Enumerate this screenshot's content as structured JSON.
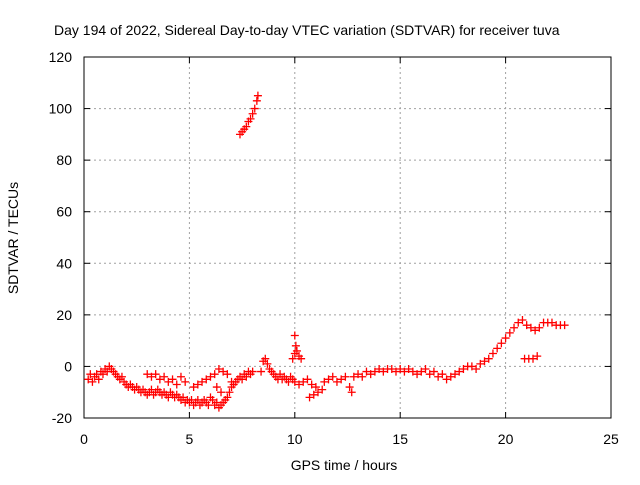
{
  "chart_data": {
    "type": "scatter",
    "title": "Day 194 of 2022, Sidereal Day-to-day VTEC variation (SDTVAR) for receiver tuva",
    "xlabel": "GPS time / hours",
    "ylabel": "SDTVAR / TECUs",
    "xlim": [
      0,
      25
    ],
    "ylim": [
      -20,
      120
    ],
    "xticks": [
      "0",
      "5",
      "10",
      "15",
      "20",
      "25"
    ],
    "yticks": [
      "-20",
      "0",
      "20",
      "40",
      "60",
      "80",
      "100",
      "120"
    ],
    "xtick_values": [
      0,
      5,
      10,
      15,
      20,
      25
    ],
    "ytick_values": [
      -20,
      0,
      20,
      40,
      60,
      80,
      100,
      120
    ],
    "grid": true,
    "marker": "+",
    "color": "#ff0000",
    "series": [
      {
        "name": "SDTVAR",
        "points": [
          [
            0.2,
            -5
          ],
          [
            0.3,
            -3
          ],
          [
            0.4,
            -6
          ],
          [
            0.5,
            -4
          ],
          [
            0.6,
            -3
          ],
          [
            0.7,
            -5
          ],
          [
            0.8,
            -2
          ],
          [
            0.9,
            -3
          ],
          [
            1.0,
            -1
          ],
          [
            1.1,
            -2
          ],
          [
            1.2,
            0
          ],
          [
            1.3,
            -1
          ],
          [
            1.4,
            -2
          ],
          [
            1.5,
            -3
          ],
          [
            1.6,
            -4
          ],
          [
            1.7,
            -5
          ],
          [
            1.8,
            -4
          ],
          [
            1.9,
            -6
          ],
          [
            2.0,
            -7
          ],
          [
            2.1,
            -8
          ],
          [
            2.2,
            -7
          ],
          [
            2.3,
            -8
          ],
          [
            2.4,
            -9
          ],
          [
            2.5,
            -8
          ],
          [
            2.6,
            -9
          ],
          [
            2.7,
            -10
          ],
          [
            2.8,
            -9
          ],
          [
            2.9,
            -10
          ],
          [
            3.0,
            -11
          ],
          [
            3.1,
            -10
          ],
          [
            3.2,
            -9
          ],
          [
            3.3,
            -11
          ],
          [
            3.4,
            -10
          ],
          [
            3.5,
            -9
          ],
          [
            3.6,
            -10
          ],
          [
            3.7,
            -11
          ],
          [
            3.8,
            -10
          ],
          [
            3.9,
            -11
          ],
          [
            4.0,
            -12
          ],
          [
            4.1,
            -10
          ],
          [
            4.2,
            -11
          ],
          [
            4.3,
            -12
          ],
          [
            4.4,
            -11
          ],
          [
            4.5,
            -12
          ],
          [
            4.6,
            -13
          ],
          [
            4.7,
            -12
          ],
          [
            4.8,
            -14
          ],
          [
            4.9,
            -13
          ],
          [
            5.0,
            -14
          ],
          [
            5.1,
            -13
          ],
          [
            5.2,
            -15
          ],
          [
            5.3,
            -14
          ],
          [
            5.4,
            -13
          ],
          [
            5.5,
            -15
          ],
          [
            5.6,
            -14
          ],
          [
            5.7,
            -13
          ],
          [
            5.8,
            -14
          ],
          [
            5.9,
            -15
          ],
          [
            6.0,
            -12
          ],
          [
            6.1,
            -13
          ],
          [
            6.2,
            -15
          ],
          [
            6.3,
            -14
          ],
          [
            6.4,
            -16
          ],
          [
            6.5,
            -15
          ],
          [
            6.6,
            -14
          ],
          [
            6.7,
            -13
          ],
          [
            6.8,
            -12
          ],
          [
            6.9,
            -10
          ],
          [
            7.0,
            -8
          ],
          [
            7.1,
            -7
          ],
          [
            7.2,
            -6
          ],
          [
            7.3,
            -5
          ],
          [
            7.4,
            -4
          ],
          [
            7.5,
            -5
          ],
          [
            7.6,
            -3
          ],
          [
            7.7,
            -4
          ],
          [
            7.8,
            -2
          ],
          [
            7.9,
            -3
          ],
          [
            8.0,
            -2
          ],
          [
            3.0,
            -3
          ],
          [
            3.2,
            -4
          ],
          [
            3.4,
            -3
          ],
          [
            3.6,
            -5
          ],
          [
            3.8,
            -4
          ],
          [
            4.0,
            -6
          ],
          [
            4.2,
            -5
          ],
          [
            4.4,
            -7
          ],
          [
            4.6,
            -4
          ],
          [
            4.8,
            -6
          ],
          [
            5.2,
            -8
          ],
          [
            5.4,
            -7
          ],
          [
            5.6,
            -6
          ],
          [
            5.8,
            -5
          ],
          [
            6.0,
            -4
          ],
          [
            6.2,
            -3
          ],
          [
            6.4,
            -1
          ],
          [
            6.6,
            -2
          ],
          [
            6.8,
            -3
          ],
          [
            7.0,
            -6
          ],
          [
            6.5,
            -10
          ],
          [
            6.3,
            -8
          ],
          [
            7.4,
            90
          ],
          [
            7.5,
            91
          ],
          [
            7.6,
            92
          ],
          [
            7.7,
            93
          ],
          [
            7.8,
            95
          ],
          [
            7.9,
            96
          ],
          [
            8.0,
            98
          ],
          [
            8.1,
            100
          ],
          [
            8.2,
            103
          ],
          [
            8.25,
            105
          ],
          [
            8.4,
            -2
          ],
          [
            8.5,
            2
          ],
          [
            8.6,
            3
          ],
          [
            8.7,
            1
          ],
          [
            8.8,
            -1
          ],
          [
            8.9,
            -2
          ],
          [
            9.0,
            -3
          ],
          [
            9.1,
            -4
          ],
          [
            9.2,
            -5
          ],
          [
            9.3,
            -3
          ],
          [
            9.4,
            -5
          ],
          [
            9.5,
            -4
          ],
          [
            9.6,
            -5
          ],
          [
            9.7,
            -6
          ],
          [
            9.8,
            -4
          ],
          [
            9.9,
            -5
          ],
          [
            9.9,
            3
          ],
          [
            10.0,
            5
          ],
          [
            10.05,
            8
          ],
          [
            10.0,
            12
          ],
          [
            10.1,
            6
          ],
          [
            10.2,
            4
          ],
          [
            10.3,
            3
          ],
          [
            10.0,
            -6
          ],
          [
            10.2,
            -7
          ],
          [
            10.4,
            -6
          ],
          [
            10.6,
            -5
          ],
          [
            10.8,
            -7
          ],
          [
            11.0,
            -8
          ],
          [
            10.7,
            -12
          ],
          [
            10.9,
            -11
          ],
          [
            11.1,
            -10
          ],
          [
            11.3,
            -9
          ],
          [
            11.4,
            -6
          ],
          [
            11.6,
            -5
          ],
          [
            11.8,
            -4
          ],
          [
            12.0,
            -6
          ],
          [
            12.2,
            -5
          ],
          [
            12.4,
            -4
          ],
          [
            12.6,
            -8
          ],
          [
            12.7,
            -10
          ],
          [
            12.8,
            -4
          ],
          [
            13.0,
            -3
          ],
          [
            13.2,
            -4
          ],
          [
            13.4,
            -2
          ],
          [
            13.6,
            -3
          ],
          [
            13.8,
            -2
          ],
          [
            14.0,
            -1
          ],
          [
            14.2,
            -2
          ],
          [
            14.4,
            -1
          ],
          [
            14.6,
            -1
          ],
          [
            14.8,
            -2
          ],
          [
            15.0,
            -1
          ],
          [
            15.2,
            -2
          ],
          [
            15.4,
            -1
          ],
          [
            15.6,
            -2
          ],
          [
            15.8,
            -3
          ],
          [
            16.0,
            -2
          ],
          [
            16.2,
            -1
          ],
          [
            16.4,
            -3
          ],
          [
            16.6,
            -2
          ],
          [
            16.8,
            -4
          ],
          [
            17.0,
            -3
          ],
          [
            17.2,
            -5
          ],
          [
            17.4,
            -4
          ],
          [
            17.6,
            -3
          ],
          [
            17.8,
            -2
          ],
          [
            18.0,
            -1
          ],
          [
            18.2,
            0
          ],
          [
            18.4,
            0
          ],
          [
            18.6,
            -1
          ],
          [
            18.8,
            1
          ],
          [
            19.0,
            2
          ],
          [
            19.2,
            3
          ],
          [
            19.4,
            5
          ],
          [
            19.6,
            7
          ],
          [
            19.8,
            9
          ],
          [
            20.0,
            11
          ],
          [
            20.2,
            13
          ],
          [
            20.4,
            15
          ],
          [
            20.6,
            17
          ],
          [
            20.8,
            18
          ],
          [
            21.0,
            16
          ],
          [
            21.2,
            15
          ],
          [
            21.4,
            14
          ],
          [
            21.6,
            15
          ],
          [
            21.8,
            17
          ],
          [
            22.0,
            17
          ],
          [
            22.2,
            17
          ],
          [
            22.4,
            16
          ],
          [
            22.6,
            16
          ],
          [
            22.8,
            16
          ],
          [
            20.9,
            3
          ],
          [
            21.1,
            3
          ],
          [
            21.3,
            3
          ],
          [
            21.5,
            4
          ]
        ]
      }
    ]
  }
}
